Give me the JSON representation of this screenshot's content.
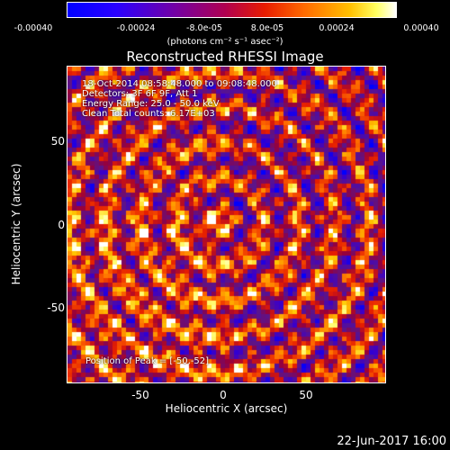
{
  "colorbar": {
    "ticks": [
      "-0.00040",
      "-0.00024",
      "-8.0e-05",
      "8.0e-05",
      "0.00024",
      "0.00040"
    ],
    "unit": "(photons cm⁻² s⁻¹ asec⁻²)"
  },
  "title": "Reconstructed RHESSI Image",
  "annotations": {
    "time": "18-Oct-2014 08:58:48.000 to 09:08:48.000",
    "detectors": "Detectors: 3F 6F 9F, Att 1",
    "energy": "Energy Range: 25.0 - 50.0 keV",
    "method": "Clean     Total counts: 6.17E+03",
    "peak": "Position of Peak = [-50,-52]"
  },
  "axes": {
    "xlabel": "Heliocentric X (arcsec)",
    "ylabel": "Heliocentric Y (arcsec)",
    "xticks": [
      "-50",
      "0",
      "50"
    ],
    "yticks": [
      "50",
      "0",
      "-50"
    ]
  },
  "footer": "22-Jun-2017 16:00",
  "colors": {
    "background": "#000000",
    "text": "#ffffff"
  }
}
